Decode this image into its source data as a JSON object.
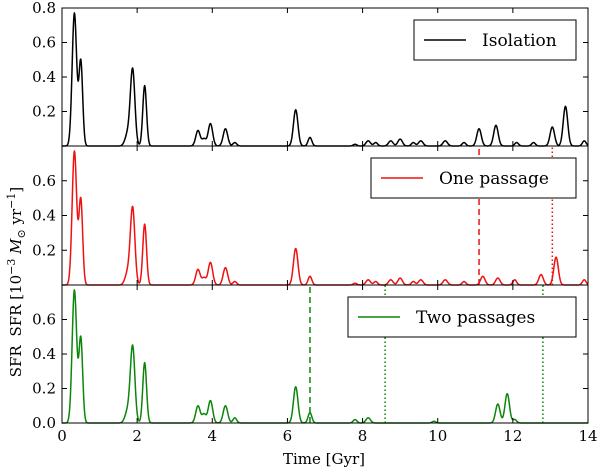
{
  "chart_data": {
    "type": "line",
    "shared_x_axis": {
      "label": "Time [Gyr]",
      "range": [
        0,
        14
      ],
      "ticks": [
        0,
        2,
        4,
        6,
        8,
        10,
        12,
        14
      ],
      "tick_labels": [
        "0",
        "2",
        "4",
        "6",
        "8",
        "10",
        "12",
        "14"
      ]
    },
    "shared_y_axis": {
      "label_prefix": "SFR [10",
      "label_exponent": "−3",
      "label_middle": " M",
      "label_sub": "⊙",
      "label_unit": " yr",
      "label_unit_exponent": "−1",
      "label_suffix": "]"
    },
    "panels": [
      {
        "name": "isolation",
        "legend": "Isolation",
        "color": "#000000",
        "ylim": [
          0,
          0.8
        ],
        "yticks": [
          0.2,
          0.4,
          0.6,
          0.8
        ],
        "ytick_labels": [
          "0.2",
          "0.4",
          "0.6",
          "0.8"
        ],
        "peaks": [
          [
            0.33,
            0.77,
            0.06
          ],
          [
            0.5,
            0.49,
            0.05
          ],
          [
            1.88,
            0.44,
            0.06
          ],
          [
            1.75,
            0.07,
            0.07
          ],
          [
            2.2,
            0.35,
            0.05
          ],
          [
            3.62,
            0.09,
            0.06
          ],
          [
            3.78,
            0.04,
            0.05
          ],
          [
            3.95,
            0.13,
            0.06
          ],
          [
            4.35,
            0.1,
            0.06
          ],
          [
            4.6,
            0.02,
            0.05
          ],
          [
            6.22,
            0.21,
            0.06
          ],
          [
            6.6,
            0.05,
            0.05
          ],
          [
            7.8,
            0.01,
            0.05
          ],
          [
            8.15,
            0.03,
            0.06
          ],
          [
            8.35,
            0.02,
            0.05
          ],
          [
            8.75,
            0.03,
            0.06
          ],
          [
            9.0,
            0.04,
            0.06
          ],
          [
            9.35,
            0.02,
            0.05
          ],
          [
            9.55,
            0.03,
            0.06
          ],
          [
            10.2,
            0.03,
            0.06
          ],
          [
            10.7,
            0.02,
            0.05
          ],
          [
            11.1,
            0.1,
            0.06
          ],
          [
            11.55,
            0.12,
            0.06
          ],
          [
            12.1,
            0.02,
            0.05
          ],
          [
            12.55,
            0.02,
            0.05
          ],
          [
            13.05,
            0.11,
            0.06
          ],
          [
            13.4,
            0.23,
            0.06
          ],
          [
            13.9,
            0.03,
            0.05
          ]
        ],
        "vlines": []
      },
      {
        "name": "one-passage",
        "legend": "One passage",
        "color": "#ee1111",
        "ylim": [
          0,
          0.8
        ],
        "yticks": [
          0.2,
          0.4,
          0.6
        ],
        "ytick_labels": [
          "0.2",
          "0.4",
          "0.6"
        ],
        "peaks": [
          [
            0.33,
            0.77,
            0.06
          ],
          [
            0.5,
            0.49,
            0.05
          ],
          [
            1.88,
            0.44,
            0.06
          ],
          [
            1.75,
            0.07,
            0.07
          ],
          [
            2.2,
            0.35,
            0.05
          ],
          [
            3.62,
            0.09,
            0.06
          ],
          [
            3.78,
            0.04,
            0.05
          ],
          [
            3.95,
            0.13,
            0.06
          ],
          [
            4.35,
            0.1,
            0.06
          ],
          [
            4.6,
            0.02,
            0.05
          ],
          [
            6.22,
            0.21,
            0.06
          ],
          [
            6.6,
            0.05,
            0.05
          ],
          [
            7.8,
            0.01,
            0.05
          ],
          [
            8.15,
            0.03,
            0.06
          ],
          [
            8.35,
            0.02,
            0.05
          ],
          [
            8.75,
            0.03,
            0.06
          ],
          [
            9.0,
            0.04,
            0.06
          ],
          [
            9.35,
            0.02,
            0.05
          ],
          [
            9.55,
            0.03,
            0.06
          ],
          [
            10.2,
            0.03,
            0.06
          ],
          [
            10.7,
            0.02,
            0.05
          ],
          [
            11.2,
            0.05,
            0.06
          ],
          [
            11.6,
            0.04,
            0.06
          ],
          [
            12.05,
            0.03,
            0.05
          ],
          [
            12.75,
            0.06,
            0.06
          ],
          [
            13.15,
            0.16,
            0.06
          ],
          [
            13.9,
            0.03,
            0.05
          ]
        ],
        "vlines": [
          {
            "x": 11.1,
            "style": "dashed",
            "ymin": 0,
            "ymax": 1.0
          },
          {
            "x": 13.05,
            "style": "dotted",
            "ymin": 0,
            "ymax": 1.0
          }
        ]
      },
      {
        "name": "two-passages",
        "legend": "Two passages",
        "color": "#0a860a",
        "ylim": [
          0,
          0.8
        ],
        "yticks": [
          0.0,
          0.2,
          0.4,
          0.6
        ],
        "ytick_labels": [
          "0.0",
          "0.2",
          "0.4",
          "0.6"
        ],
        "peaks": [
          [
            0.33,
            0.77,
            0.06
          ],
          [
            0.5,
            0.49,
            0.05
          ],
          [
            1.88,
            0.44,
            0.06
          ],
          [
            1.75,
            0.07,
            0.07
          ],
          [
            2.2,
            0.35,
            0.05
          ],
          [
            3.62,
            0.1,
            0.06
          ],
          [
            3.78,
            0.05,
            0.05
          ],
          [
            3.95,
            0.13,
            0.06
          ],
          [
            4.35,
            0.1,
            0.06
          ],
          [
            4.6,
            0.03,
            0.05
          ],
          [
            6.22,
            0.21,
            0.06
          ],
          [
            6.6,
            0.06,
            0.05
          ],
          [
            7.8,
            0.02,
            0.05
          ],
          [
            8.15,
            0.03,
            0.06
          ],
          [
            9.9,
            0.01,
            0.05
          ],
          [
            11.6,
            0.11,
            0.06
          ],
          [
            11.85,
            0.17,
            0.06
          ],
          [
            12.05,
            0.02,
            0.05
          ]
        ],
        "vlines": [
          {
            "x": 6.6,
            "style": "dashed",
            "ymin": 0,
            "ymax": 1.0
          },
          {
            "x": 8.6,
            "style": "dotted",
            "ymin": 0,
            "ymax": 1.0
          },
          {
            "x": 12.8,
            "style": "dotted",
            "ymin": 0,
            "ymax": 1.0
          }
        ]
      }
    ]
  }
}
